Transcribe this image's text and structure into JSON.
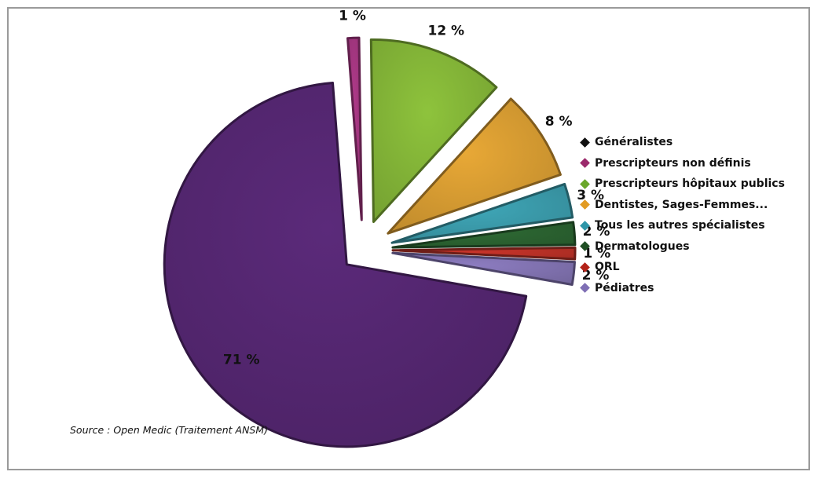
{
  "chart_data": {
    "type": "pie",
    "title": "",
    "legend_placement": "right",
    "slices": [
      {
        "name": "Généralistes",
        "value": 71,
        "label": "71 %",
        "color": "#5b2a7a"
      },
      {
        "name": "Prescripteurs non définis",
        "value": 1,
        "label": "1 %",
        "color": "#b03a8a"
      },
      {
        "name": "Prescripteurs hôpitaux publics",
        "value": 12,
        "label": "12 %",
        "color": "#8ec33c"
      },
      {
        "name": "Dentistes, Sages-Femmes...",
        "value": 8,
        "label": "8 %",
        "color": "#e8a836"
      },
      {
        "name": "Tous les autres spécialistes",
        "value": 3,
        "label": "3 %",
        "color": "#3fa7b8"
      },
      {
        "name": "Dermatologues",
        "value": 2,
        "label": "2 %",
        "color": "#2e6a34"
      },
      {
        "name": "ORL",
        "value": 1,
        "label": "1 %",
        "color": "#c8342a"
      },
      {
        "name": "Pédiatres",
        "value": 2,
        "label": "2 %",
        "color": "#8c7cc0"
      }
    ]
  },
  "legend": {
    "items": [
      {
        "label": "Généralistes",
        "color": "#111111"
      },
      {
        "label": "Prescripteurs non définis",
        "color": "#9b2a6c"
      },
      {
        "label": "Prescripteurs hôpitaux publics",
        "color": "#6aa72a"
      },
      {
        "label": "Dentistes, Sages-Femmes...",
        "color": "#e29b22"
      },
      {
        "label": "Tous les autres spécialistes",
        "color": "#2f96a8"
      },
      {
        "label": "Dermatologues",
        "color": "#1f4f24"
      },
      {
        "label": "ORL",
        "color": "#b32218"
      },
      {
        "label": "Pédiatres",
        "color": "#7f6fb5"
      }
    ]
  },
  "source_text": "Source : Open Medic (Traitement ANSM)"
}
